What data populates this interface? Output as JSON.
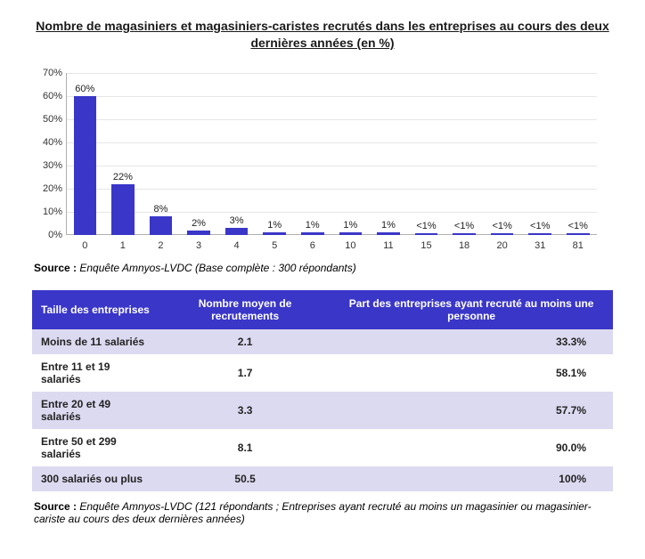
{
  "title": "Nombre de magasiniers et magasiniers-caristes recrutés dans les entreprises au cours des deux dernières années (en %)",
  "chart": {
    "type": "bar",
    "categories": [
      "0",
      "1",
      "2",
      "3",
      "4",
      "5",
      "6",
      "10",
      "11",
      "15",
      "18",
      "20",
      "31",
      "81"
    ],
    "values": [
      60,
      22,
      8,
      2,
      3,
      1,
      1,
      1,
      1,
      0.5,
      0.5,
      0.5,
      0.5,
      0.5
    ],
    "value_labels": [
      "60%",
      "22%",
      "8%",
      "2%",
      "3%",
      "1%",
      "1%",
      "1%",
      "1%",
      "<1%",
      "<1%",
      "<1%",
      "<1%",
      "<1%"
    ],
    "bar_color": "#3a36c8",
    "ymax": 70,
    "ytick_step": 10,
    "ytick_suffix": "%",
    "grid_color": "#e6e6e6",
    "axis_color": "#b0b0b0",
    "label_fontsize": 11,
    "background_color": "#ffffff"
  },
  "source1": {
    "label": "Source :",
    "text": "Enquête Amnyos-LVDC (Base complète : 300 répondants)"
  },
  "table": {
    "header_bg": "#3a36c8",
    "row_alt_bg": "#dcdaf0",
    "row_bg": "#ffffff",
    "border_color": "#ffffff",
    "columns": [
      "Taille des entreprises",
      "Nombre moyen de recrutements",
      "Part des entreprises ayant recruté au moins une personne"
    ],
    "rows": [
      [
        "Moins de 11 salariés",
        "2.1",
        "33.3%"
      ],
      [
        "Entre 11 et 19 salariés",
        "1.7",
        "58.1%"
      ],
      [
        "Entre 20 et 49 salariés",
        "3.3",
        "57.7%"
      ],
      [
        "Entre 50 et 299 salariés",
        "8.1",
        "90.0%"
      ],
      [
        "300 salariés ou plus",
        "50.5",
        "100%"
      ]
    ]
  },
  "source2": {
    "label": "Source :",
    "text": "Enquête Amnyos-LVDC (121 répondants ; Entreprises ayant recruté au moins un magasinier ou magasinier-cariste au cours des deux dernières années)"
  }
}
